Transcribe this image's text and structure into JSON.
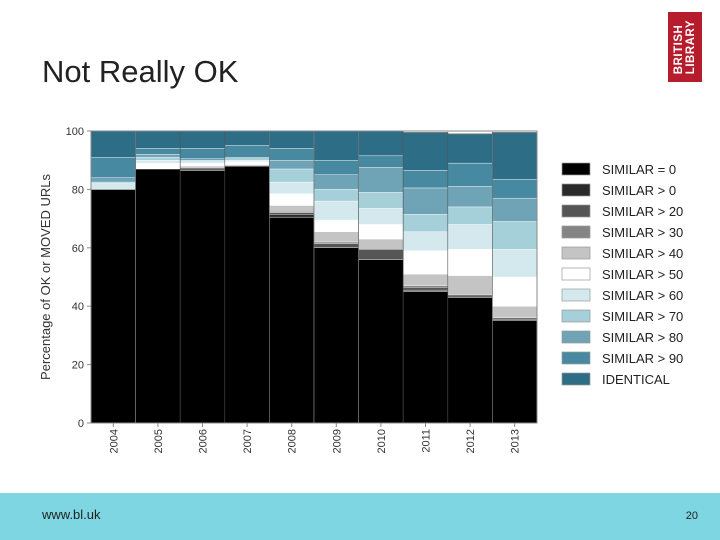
{
  "slide": {
    "title": "Not Really OK",
    "footer_url": "www.bl.uk",
    "page_number": "20",
    "logo": {
      "line1": "BRITISH",
      "line2": "LIBRARY",
      "color": "#b71c2c"
    },
    "footer_color": "#7dd6e2"
  },
  "chart_data": {
    "type": "bar",
    "stacked": true,
    "title": "",
    "xlabel": "",
    "ylabel": "Percentage of OK or MOVED URLs",
    "ylim": [
      0,
      100
    ],
    "yticks": [
      0,
      20,
      40,
      60,
      80,
      100
    ],
    "grid": true,
    "legend_position": "right",
    "categories": [
      "2004",
      "2005",
      "2006",
      "2007",
      "2008",
      "2009",
      "2010",
      "2011",
      "2012",
      "2013"
    ],
    "series": [
      {
        "name": "SIMILAR = 0",
        "color": "#000000",
        "values": [
          80,
          87,
          86.5,
          88,
          70.5,
          60,
          56,
          45,
          43,
          35
        ]
      },
      {
        "name": "SIMILAR > 0",
        "color": "#2a2a2a",
        "values": [
          0,
          0,
          0.5,
          0,
          1,
          0,
          0,
          0.5,
          0.5,
          0.5
        ]
      },
      {
        "name": "SIMILAR > 20",
        "color": "#555555",
        "values": [
          0,
          0,
          0.5,
          0,
          0.5,
          1.5,
          3.5,
          1,
          0.5,
          0.5
        ]
      },
      {
        "name": "SIMILAR > 30",
        "color": "#858585",
        "values": [
          0,
          0,
          0,
          0,
          0.5,
          0.5,
          0,
          0.5,
          0,
          0
        ]
      },
      {
        "name": "SIMILAR > 40",
        "color": "#c4c4c4",
        "values": [
          0,
          0,
          0.5,
          0.5,
          2,
          3.5,
          3.5,
          4,
          6.5,
          4
        ]
      },
      {
        "name": "SIMILAR > 50",
        "color": "#ffffff",
        "values": [
          0,
          2,
          1,
          1,
          4,
          4,
          5,
          8,
          9,
          10
        ]
      },
      {
        "name": "SIMILAR > 60",
        "color": "#d3e9ee",
        "values": [
          2,
          1,
          0.5,
          0.5,
          4,
          6.5,
          5.5,
          6.5,
          8.5,
          9.5
        ]
      },
      {
        "name": "SIMILAR > 70",
        "color": "#a5cfd9",
        "values": [
          0.5,
          1,
          0.5,
          0.5,
          4.5,
          4,
          5.5,
          6,
          6,
          9.5
        ]
      },
      {
        "name": "SIMILAR > 80",
        "color": "#6ea4b5",
        "values": [
          1.5,
          1,
          0.5,
          0.5,
          3,
          5,
          8.5,
          9,
          7,
          8
        ]
      },
      {
        "name": "SIMILAR > 90",
        "color": "#4789a0",
        "values": [
          7,
          2,
          3.5,
          4,
          4,
          5,
          4,
          6,
          8,
          6.5
        ]
      },
      {
        "name": "IDENTICAL",
        "color": "#2d6d86",
        "values": [
          9,
          6,
          6,
          5,
          6,
          10,
          8.5,
          13,
          10,
          16
        ]
      }
    ]
  }
}
